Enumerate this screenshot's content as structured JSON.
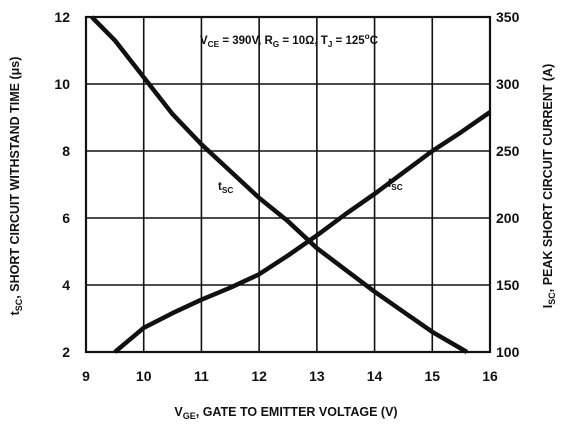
{
  "chart_data": {
    "type": "line",
    "x_axis": {
      "label_main": "V",
      "label_sub": "GE",
      "label_rest": ", GATE TO EMITTER VOLTAGE (V)",
      "range": [
        9,
        16
      ],
      "ticks": [
        "9",
        "10",
        "11",
        "12",
        "13",
        "14",
        "15",
        "16"
      ]
    },
    "y_axis_left": {
      "label_main": "t",
      "label_sub": "SC",
      "label_rest": ", SHORT CIRCUIT WITHSTAND TIME (μs)",
      "range": [
        2,
        12
      ],
      "ticks": [
        "2",
        "4",
        "6",
        "8",
        "10",
        "12"
      ]
    },
    "y_axis_right": {
      "label_main": "I",
      "label_sub": "SC",
      "label_rest": ", PEAK SHORT CIRCUIT CURRENT (A)",
      "range": [
        100,
        350
      ],
      "ticks": [
        "100",
        "150",
        "200",
        "250",
        "300",
        "350"
      ]
    },
    "conditions": {
      "vce_main": "V",
      "vce_sub": "CE",
      "vce_value": " = 390V, R",
      "rg_sub": "G",
      "rg_value": " = 10Ω, T",
      "tj_sub": "J",
      "tj_value": " = 125",
      "tj_sup": "o",
      "tj_unit": "C"
    },
    "grid": true,
    "series": [
      {
        "name_main": "t",
        "name_sub": "SC",
        "axis": "left",
        "x": [
          9.1,
          9.5,
          10,
          10.5,
          11,
          11.5,
          12,
          12.5,
          13,
          13.5,
          14,
          14.5,
          15,
          15.6
        ],
        "y": [
          12,
          11.3,
          10.2,
          9.1,
          8.2,
          7.4,
          6.6,
          5.9,
          5.1,
          4.45,
          3.8,
          3.2,
          2.6,
          2.0
        ]
      },
      {
        "name_main": "I",
        "name_sub": "SC",
        "axis": "right",
        "x": [
          9.5,
          10,
          10.5,
          11,
          11.5,
          12,
          12.5,
          13,
          13.5,
          14,
          14.5,
          15,
          15.5,
          16
        ],
        "y": [
          100,
          118,
          129,
          139,
          148,
          158,
          172,
          187,
          203,
          218,
          234,
          250,
          264,
          279
        ]
      }
    ],
    "colors": {
      "line": "#111111",
      "grid": "#111111",
      "frame": "#111111"
    }
  }
}
